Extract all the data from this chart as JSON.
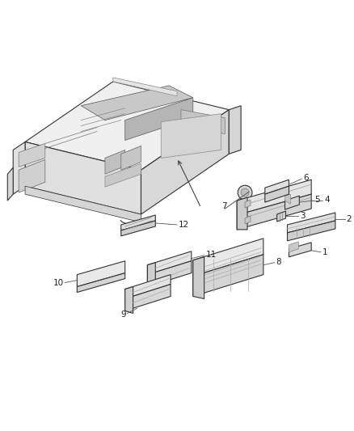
{
  "bg_color": "#ffffff",
  "line_color": "#333333",
  "gray_line": "#888888",
  "label_color": "#222222",
  "fig_width": 4.38,
  "fig_height": 5.33,
  "dpi": 100,
  "label_fontsize": 7.5
}
